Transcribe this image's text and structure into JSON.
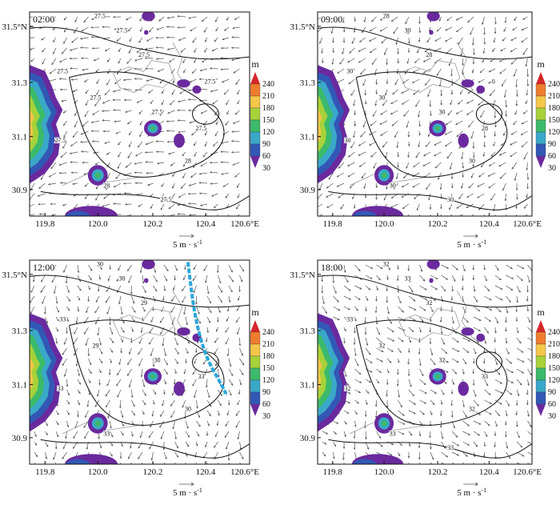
{
  "figure": {
    "scale_label": "5 m · s",
    "scale_exp": "-1"
  },
  "colors": {
    "shade": [
      "#6a2a9e",
      "#3258b6",
      "#3aa8c8",
      "#3cba6a",
      "#a8d23a",
      "#f5c64a",
      "#ef7d2e",
      "#d6262a"
    ],
    "contour": "#111111",
    "streets": "#9a9a9a",
    "vector": "#555555",
    "front_line": "#2aa7d9"
  },
  "chart_data": [
    {
      "type": "map",
      "time": "02:00",
      "xticks": [
        "119.8",
        "120.0",
        "120.2",
        "120.4",
        "120.6°E"
      ],
      "yticks": [
        "31.5°N",
        "31.3",
        "31.1",
        "30.9"
      ],
      "colorbar_unit": "m",
      "colorbar_levels": [
        "240",
        "210",
        "180",
        "150",
        "120",
        "90",
        "60",
        "30"
      ],
      "contour_labels": [
        "27.5",
        "27.5",
        "27.5",
        "27.5",
        "27.5",
        "27.5",
        "27.5",
        "27.5",
        "28",
        "28",
        "27.5",
        "27.5"
      ],
      "wind_direction_deg": 210
    },
    {
      "type": "map",
      "time": "09:00",
      "xticks": [
        "119.8",
        "120.0",
        "120.2",
        "120.4",
        "120.6°E"
      ],
      "yticks": [
        "31.5°N",
        "31.3",
        "31.1",
        "30.9"
      ],
      "colorbar_unit": "m",
      "colorbar_levels": [
        "240",
        "210",
        "180",
        "150",
        "120",
        "90",
        "60",
        "30"
      ],
      "contour_labels": [
        "28",
        "30",
        "28",
        "30",
        "30",
        "30",
        "28",
        "30",
        "30",
        "30",
        "30",
        "0"
      ],
      "wind_direction_deg": 240
    },
    {
      "type": "map",
      "time": "12:00",
      "xticks": [
        "119.8",
        "120.0",
        "120.2",
        "120.4",
        "120.6°E"
      ],
      "yticks": [
        "31.5°N",
        "31.3",
        "31.1",
        "30.9"
      ],
      "colorbar_unit": "m",
      "colorbar_levels": [
        "240",
        "210",
        "180",
        "150",
        "120",
        "90",
        "60",
        "30"
      ],
      "contour_labels": [
        "30",
        "30",
        "29",
        "33",
        "29",
        "30",
        "33",
        "33",
        "30",
        "33"
      ],
      "wind_direction_deg": 270,
      "front_line": true
    },
    {
      "type": "map",
      "time": "18:00",
      "xticks": [
        "119.8",
        "120.0",
        "120.2",
        "120.4",
        "120.6°E"
      ],
      "yticks": [
        "31.5°N",
        "31.3",
        "31.1",
        "30.9"
      ],
      "colorbar_unit": "m",
      "colorbar_levels": [
        "240",
        "210",
        "180",
        "150",
        "120",
        "90",
        "60",
        "30"
      ],
      "contour_labels": [
        "32",
        "33",
        "32",
        "33",
        "32",
        "32",
        "33",
        "32",
        "32",
        "33",
        "33"
      ],
      "wind_direction_deg": 300
    }
  ]
}
